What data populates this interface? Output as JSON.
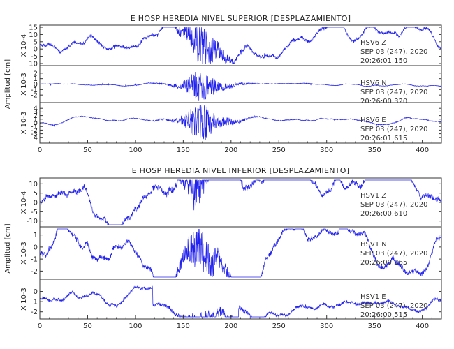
{
  "chart_data": [
    {
      "type": "line",
      "title": "E HOSP HEREDIA NIVEL SUPERIOR [DESPLAZAMIENTO]",
      "ylabel": "Amplitud [cm]",
      "xlim": [
        0,
        420
      ],
      "xticks": [
        0,
        50,
        100,
        150,
        200,
        250,
        300,
        350,
        400
      ],
      "panels": [
        {
          "station": "HSV6",
          "component": "Z",
          "date": "SEP 03 (247), 2020",
          "time": "20:26:01.150",
          "scale": "X 10-4",
          "ylim": [
            -10,
            15
          ],
          "yticks": [
            -10,
            -5,
            0,
            5,
            10,
            15
          ],
          "color": "#2222ee"
        },
        {
          "station": "HSV6",
          "component": "N",
          "date": "SEP 03 (247), 2020",
          "time": "20:26:00.320",
          "scale": "X 10-3",
          "ylim": [
            -3,
            3
          ],
          "yticks": [
            -2,
            -1,
            0,
            1,
            2
          ],
          "color": "#2222ee"
        },
        {
          "station": "HSV6",
          "component": "E",
          "date": "SEP 03 (247), 2020",
          "time": "20:26:01.615",
          "scale": "X 10-3",
          "ylim": [
            -5,
            5
          ],
          "yticks": [
            -4,
            -3,
            -2,
            -1,
            0,
            1,
            2,
            3,
            4
          ],
          "color": "#2222ee"
        }
      ]
    },
    {
      "type": "line",
      "title": "E HOSP HEREDIA NIVEL INFERIOR [DESPLAZAMIENTO]",
      "ylabel": "Amplitud [cm]",
      "xlim": [
        0,
        420
      ],
      "xticks": [
        0,
        50,
        100,
        150,
        200,
        250,
        300,
        350,
        400
      ],
      "panels": [
        {
          "station": "HSV1",
          "component": "Z",
          "date": "SEP 03 (247), 2020",
          "time": "20:26:00.610",
          "scale": "X 10-4",
          "ylim": [
            -12,
            12
          ],
          "yticks": [
            -10,
            -5,
            0,
            5,
            10
          ],
          "color": "#2222ee"
        },
        {
          "station": "HSV1",
          "component": "N",
          "date": "SEP 03 (247), 2020",
          "time": "20:26:00.365",
          "scale": "X 10-3",
          "ylim": [
            -2.5,
            1.5
          ],
          "yticks": [
            -2,
            -1,
            0,
            1
          ],
          "color": "#2222ee"
        },
        {
          "station": "HSV1",
          "component": "E",
          "date": "SEP 03 (247), 2020",
          "time": "20:26:00.515",
          "scale": "X 10-3",
          "ylim": [
            -2.5,
            1
          ],
          "yticks": [
            -2,
            -1,
            0
          ],
          "color": "#2222ee"
        }
      ]
    }
  ]
}
